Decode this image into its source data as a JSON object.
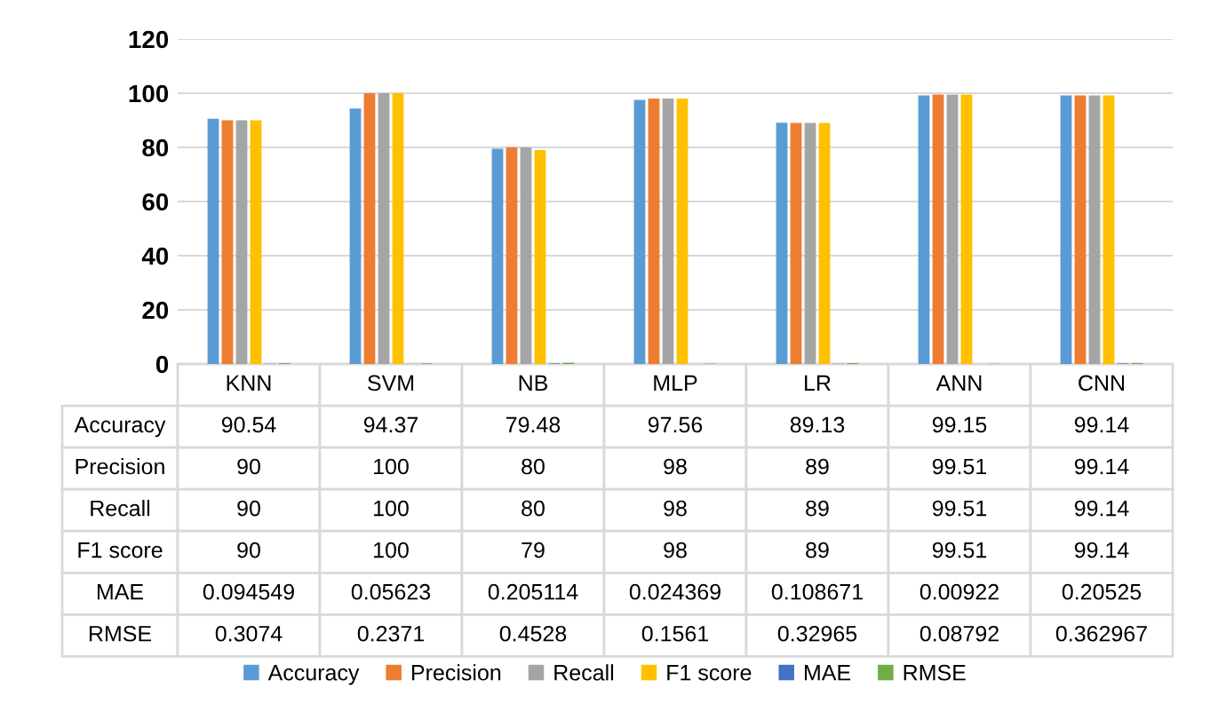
{
  "chart_data": {
    "type": "bar",
    "categories": [
      "KNN",
      "SVM",
      "NB",
      "MLP",
      "LR",
      "ANN",
      "CNN"
    ],
    "series": [
      {
        "name": "Accuracy",
        "color": "#5b9bd5",
        "values": [
          90.54,
          94.37,
          79.48,
          97.56,
          89.13,
          99.15,
          99.14
        ]
      },
      {
        "name": "Precision",
        "color": "#ed7d31",
        "values": [
          90,
          100,
          80,
          98,
          89,
          99.51,
          99.14
        ]
      },
      {
        "name": "Recall",
        "color": "#a5a5a5",
        "values": [
          90,
          100,
          80,
          98,
          89,
          99.51,
          99.14
        ]
      },
      {
        "name": "F1 score",
        "color": "#ffc000",
        "values": [
          90,
          100,
          79,
          98,
          89,
          99.51,
          99.14
        ]
      },
      {
        "name": "MAE",
        "color": "#4472c4",
        "values": [
          0.094549,
          0.05623,
          0.205114,
          0.024369,
          0.108671,
          0.00922,
          0.20525
        ]
      },
      {
        "name": "RMSE",
        "color": "#70ad47",
        "values": [
          0.3074,
          0.2371,
          0.4528,
          0.1561,
          0.32965,
          0.08792,
          0.362967
        ]
      }
    ],
    "ylim": [
      0,
      120
    ],
    "yticks": [
      0,
      20,
      40,
      60,
      80,
      100,
      120
    ],
    "grid": "y",
    "legend": "bottom",
    "data_labels": true
  }
}
